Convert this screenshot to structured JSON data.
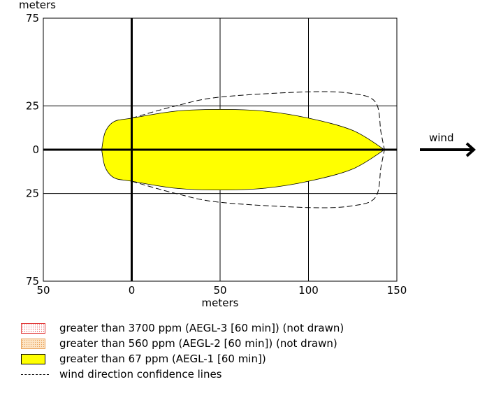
{
  "chart_data": {
    "type": "area",
    "title": "",
    "xlabel": "meters",
    "ylabel": "meters",
    "x_ticks": [
      "50",
      "0",
      "50",
      "100",
      "150"
    ],
    "y_ticks_top": [
      "75",
      "25",
      "0",
      "25",
      "75"
    ],
    "xlim": [
      -50,
      150
    ],
    "ylim": [
      -75,
      75
    ],
    "grid": true,
    "wind_label": "wind",
    "threat_zone_aegl1": {
      "name": "greater than 67 ppm (AEGL-1 [60 min])",
      "color": "#ffff00",
      "upper_outline": [
        [
          -17,
          0
        ],
        [
          -15,
          10
        ],
        [
          -10,
          16
        ],
        [
          0,
          18
        ],
        [
          25,
          22
        ],
        [
          50,
          23
        ],
        [
          75,
          22
        ],
        [
          100,
          18
        ],
        [
          125,
          11
        ],
        [
          143,
          0
        ]
      ],
      "lower_outline": [
        [
          143,
          0
        ],
        [
          125,
          -11
        ],
        [
          100,
          -18
        ],
        [
          75,
          -22
        ],
        [
          50,
          -23
        ],
        [
          25,
          -22
        ],
        [
          0,
          -18
        ],
        [
          -10,
          -16
        ],
        [
          -15,
          -10
        ],
        [
          -17,
          0
        ]
      ]
    },
    "confidence_lines": {
      "name": "wind direction confidence lines",
      "upper": [
        [
          0,
          18
        ],
        [
          25,
          25
        ],
        [
          50,
          30
        ],
        [
          100,
          33
        ],
        [
          125,
          32
        ],
        [
          138,
          27
        ],
        [
          141,
          10
        ],
        [
          143,
          0
        ]
      ],
      "lower": [
        [
          0,
          -18
        ],
        [
          25,
          -25
        ],
        [
          50,
          -30
        ],
        [
          100,
          -33
        ],
        [
          125,
          -32
        ],
        [
          138,
          -27
        ],
        [
          141,
          -10
        ],
        [
          143,
          0
        ]
      ]
    }
  },
  "legend": {
    "items": [
      {
        "label": "greater than 3700 ppm (AEGL-3 [60 min]) (not drawn)"
      },
      {
        "label": "greater than 560 ppm (AEGL-2 [60 min]) (not drawn)"
      },
      {
        "label": "greater than 67 ppm (AEGL-1 [60 min])"
      },
      {
        "label": "wind direction confidence lines"
      }
    ]
  }
}
